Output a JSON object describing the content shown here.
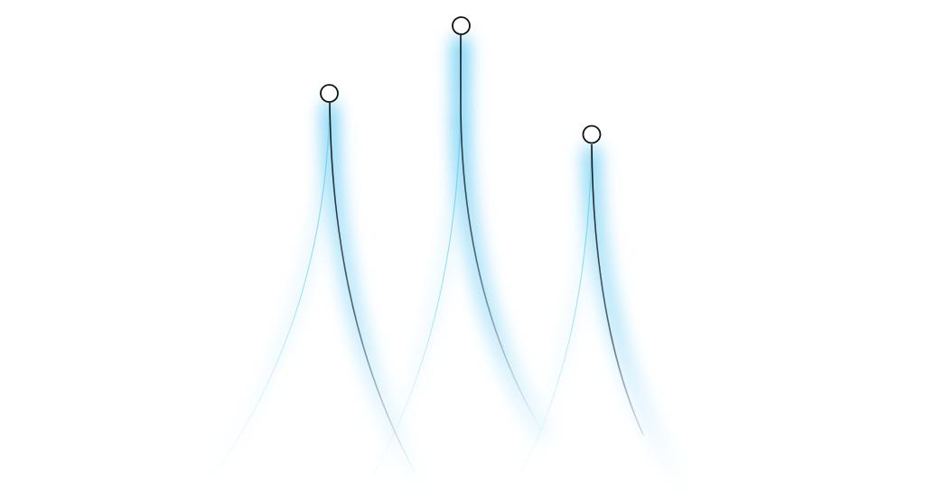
{
  "colors": {
    "background": "#ffffff",
    "glow": "#5ec8f2",
    "dark_stroke": "#1a1a1a",
    "light_stroke": "#8fdcf3",
    "node_fill": "#ffffff",
    "node_stroke": "#111111"
  },
  "decoration": {
    "shape": "three-arc-spikes",
    "count": 3,
    "node_icon": "circle-node-icon"
  }
}
